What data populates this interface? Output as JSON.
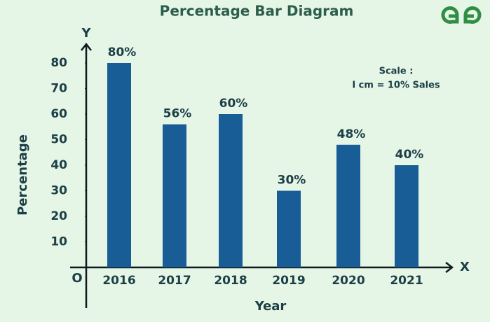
{
  "chart_data": {
    "type": "bar",
    "title": "Percentage Bar Diagram",
    "x_label": "Year",
    "y_label": "Percentage",
    "x_symbol": "X",
    "y_symbol": "Y",
    "origin_label": "O",
    "annotation": [
      "Scale :",
      "I cm = 10% Sales"
    ],
    "categories": [
      "2016",
      "2017",
      "2018",
      "2019",
      "2020",
      "2021"
    ],
    "values": [
      80,
      56,
      60,
      30,
      48,
      40
    ],
    "value_labels": [
      "80%",
      "56%",
      "60%",
      "30%",
      "48%",
      "40%"
    ],
    "color": "#185d96",
    "ylim": [
      0,
      80
    ],
    "yticks": [
      10,
      20,
      30,
      40,
      50,
      60,
      70,
      80
    ],
    "grid": false
  }
}
